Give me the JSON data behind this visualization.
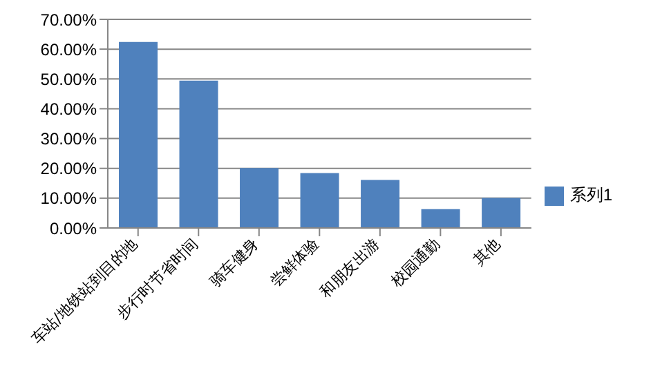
{
  "chart_data": {
    "type": "bar",
    "categories": [
      "车站/地铁站到目的地",
      "步行时节省时间",
      "骑车健身",
      "尝鲜体验",
      "和朋友出游",
      "校园通勤",
      "其他"
    ],
    "series": [
      {
        "name": "系列1",
        "color": "#4f81bd",
        "values": [
          62.4,
          49.4,
          20.1,
          18.4,
          16.1,
          6.3,
          10.1
        ]
      }
    ],
    "ylim": [
      0,
      70
    ],
    "yticks": [
      {
        "value": 0,
        "label": "0.00%"
      },
      {
        "value": 10,
        "label": "10.00%"
      },
      {
        "value": 20,
        "label": "20.00%"
      },
      {
        "value": 30,
        "label": "30.00%"
      },
      {
        "value": 40,
        "label": "40.00%"
      },
      {
        "value": 50,
        "label": "50.00%"
      },
      {
        "value": 60,
        "label": "60.00%"
      },
      {
        "value": 70,
        "label": "70.00%"
      }
    ],
    "grid": "y",
    "legend": "right"
  }
}
